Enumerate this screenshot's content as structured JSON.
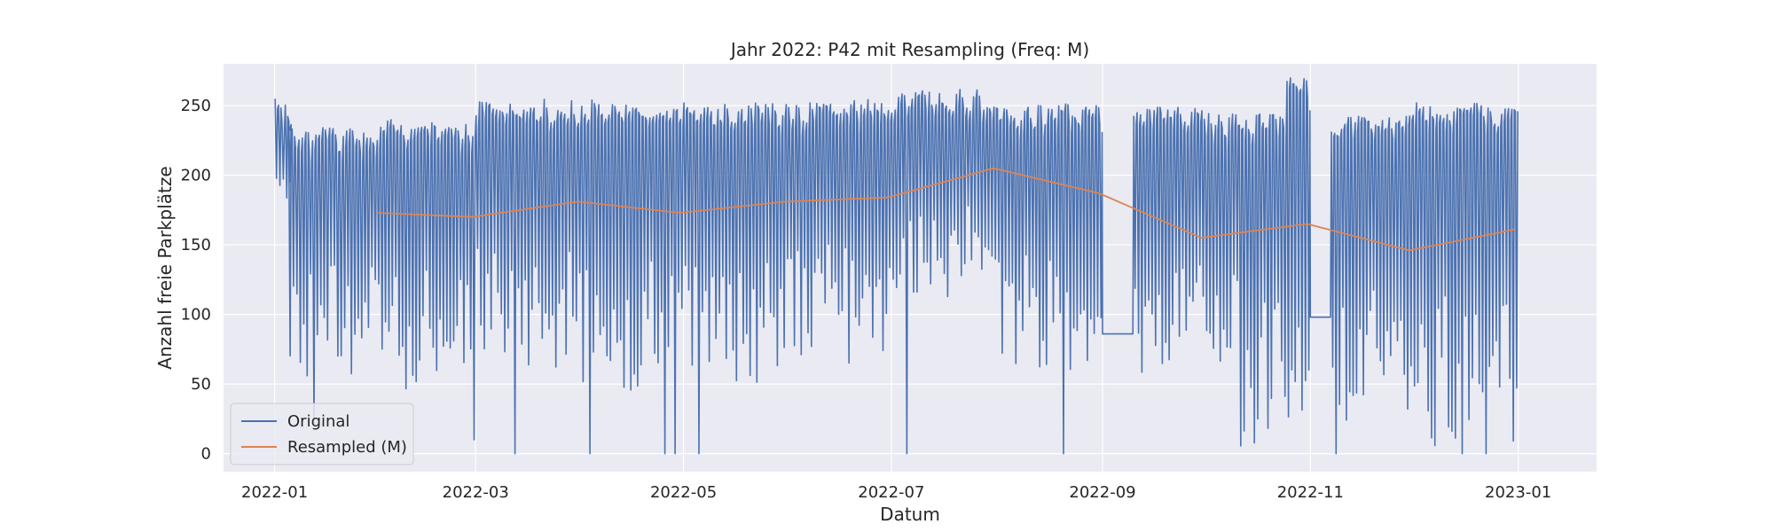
{
  "chart_data": {
    "type": "line",
    "title": "Jahr 2022: P42 mit Resampling (Freq: M)",
    "xlabel": "Datum",
    "ylabel": "Anzahl freie Parkplätze",
    "xlim": [
      "2021-12-17",
      "2023-01-24"
    ],
    "ylim": [
      -13,
      280
    ],
    "x_ticks": [
      "2022-01",
      "2022-03",
      "2022-05",
      "2022-07",
      "2022-09",
      "2022-11",
      "2023-01"
    ],
    "y_ticks": [
      0,
      50,
      100,
      150,
      200,
      250
    ],
    "grid": true,
    "legend": "lower-left",
    "colors": {
      "original": "#4c72b0",
      "resampled": "#dd8452",
      "background": "#eaeaf2",
      "grid": "#ffffff"
    },
    "series": [
      {
        "name": "Original",
        "style": "dense daily oscillation",
        "segments": [
          {
            "from": "2022-01-01",
            "to": "2022-01-05",
            "high": 255,
            "low": 180
          },
          {
            "from": "2022-01-05",
            "to": "2022-01-31",
            "high": 235,
            "low": 55
          },
          {
            "from": "2022-02-01",
            "to": "2022-02-28",
            "high": 240,
            "low": 45
          },
          {
            "from": "2022-03-01",
            "to": "2022-03-31",
            "high": 255,
            "low": 60
          },
          {
            "from": "2022-04-01",
            "to": "2022-04-30",
            "high": 255,
            "low": 45
          },
          {
            "from": "2022-05-01",
            "to": "2022-05-31",
            "high": 252,
            "low": 50
          },
          {
            "from": "2022-06-01",
            "to": "2022-06-30",
            "high": 255,
            "low": 65
          },
          {
            "from": "2022-07-01",
            "to": "2022-07-31",
            "high": 262,
            "low": 110
          },
          {
            "from": "2022-08-01",
            "to": "2022-08-31",
            "high": 252,
            "low": 60
          },
          {
            "from": "2022-09-01",
            "to": "2022-09-09",
            "flat": 86
          },
          {
            "from": "2022-09-10",
            "to": "2022-09-30",
            "high": 250,
            "low": 50
          },
          {
            "from": "2022-10-01",
            "to": "2022-10-10",
            "high": 245,
            "low": 60
          },
          {
            "from": "2022-10-11",
            "to": "2022-10-24",
            "high": 245,
            "low": 0
          },
          {
            "from": "2022-10-25",
            "to": "2022-10-31",
            "high": 270,
            "low": 25
          },
          {
            "from": "2022-11-01",
            "to": "2022-11-06",
            "flat": 98
          },
          {
            "from": "2022-11-07",
            "to": "2022-11-30",
            "high": 243,
            "low": 20
          },
          {
            "from": "2022-12-01",
            "to": "2022-12-31",
            "high": 252,
            "low": 5
          }
        ],
        "spikes": [
          {
            "date": "2022-01-12",
            "value": 20
          },
          {
            "date": "2022-02-28",
            "value": 10
          },
          {
            "date": "2022-03-12",
            "value": 0
          },
          {
            "date": "2022-04-03",
            "value": 0
          },
          {
            "date": "2022-04-25",
            "value": 0
          },
          {
            "date": "2022-04-28",
            "value": 0
          },
          {
            "date": "2022-05-05",
            "value": 0
          },
          {
            "date": "2022-07-05",
            "value": 0
          },
          {
            "date": "2022-08-20",
            "value": 0
          },
          {
            "date": "2022-11-08",
            "value": 0
          },
          {
            "date": "2022-12-15",
            "value": 0
          },
          {
            "date": "2022-12-22",
            "value": 0
          }
        ]
      },
      {
        "name": "Resampled (M)",
        "x": [
          "2022-01-31",
          "2022-02-28",
          "2022-03-31",
          "2022-04-30",
          "2022-05-31",
          "2022-06-30",
          "2022-07-31",
          "2022-08-31",
          "2022-09-30",
          "2022-10-31",
          "2022-11-30",
          "2022-12-31"
        ],
        "values": [
          173,
          170,
          181,
          173,
          181,
          184,
          205,
          187,
          155,
          165,
          146,
          161
        ]
      }
    ]
  }
}
